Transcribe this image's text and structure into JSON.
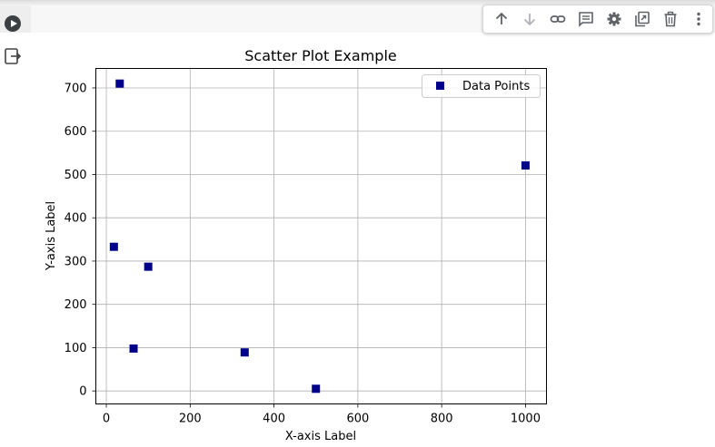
{
  "cell": {
    "run_icon": "play-circle-icon",
    "output_icon": "exit-to-app-icon"
  },
  "toolbar": {
    "buttons": [
      {
        "name": "move-up-button",
        "icon": "arrow-up-icon"
      },
      {
        "name": "move-down-button",
        "icon": "arrow-down-icon",
        "disabled": true
      },
      {
        "name": "link-button",
        "icon": "link-icon"
      },
      {
        "name": "comment-button",
        "icon": "comment-icon"
      },
      {
        "name": "settings-button",
        "icon": "gear-icon"
      },
      {
        "name": "mirror-cell-button",
        "icon": "mirror-icon"
      },
      {
        "name": "delete-button",
        "icon": "trash-icon"
      },
      {
        "name": "more-button",
        "icon": "more-vert-icon"
      }
    ]
  },
  "chart_data": {
    "type": "scatter",
    "title": "Scatter Plot Example",
    "xlabel": "X-axis Label",
    "ylabel": "Y-axis Label",
    "xlim": [
      -25,
      1050
    ],
    "ylim": [
      -30,
      745
    ],
    "xticks": [
      0,
      200,
      400,
      600,
      800,
      1000
    ],
    "yticks": [
      0,
      100,
      200,
      300,
      400,
      500,
      600,
      700
    ],
    "grid": true,
    "legend_placement": "top-right",
    "marker": "square",
    "color": "#00008b",
    "series": [
      {
        "name": "Data Points",
        "points": [
          {
            "x": 32,
            "y": 710
          },
          {
            "x": 18,
            "y": 333
          },
          {
            "x": 100,
            "y": 287
          },
          {
            "x": 65,
            "y": 98
          },
          {
            "x": 330,
            "y": 89
          },
          {
            "x": 500,
            "y": 5
          },
          {
            "x": 1000,
            "y": 521
          }
        ]
      }
    ]
  }
}
